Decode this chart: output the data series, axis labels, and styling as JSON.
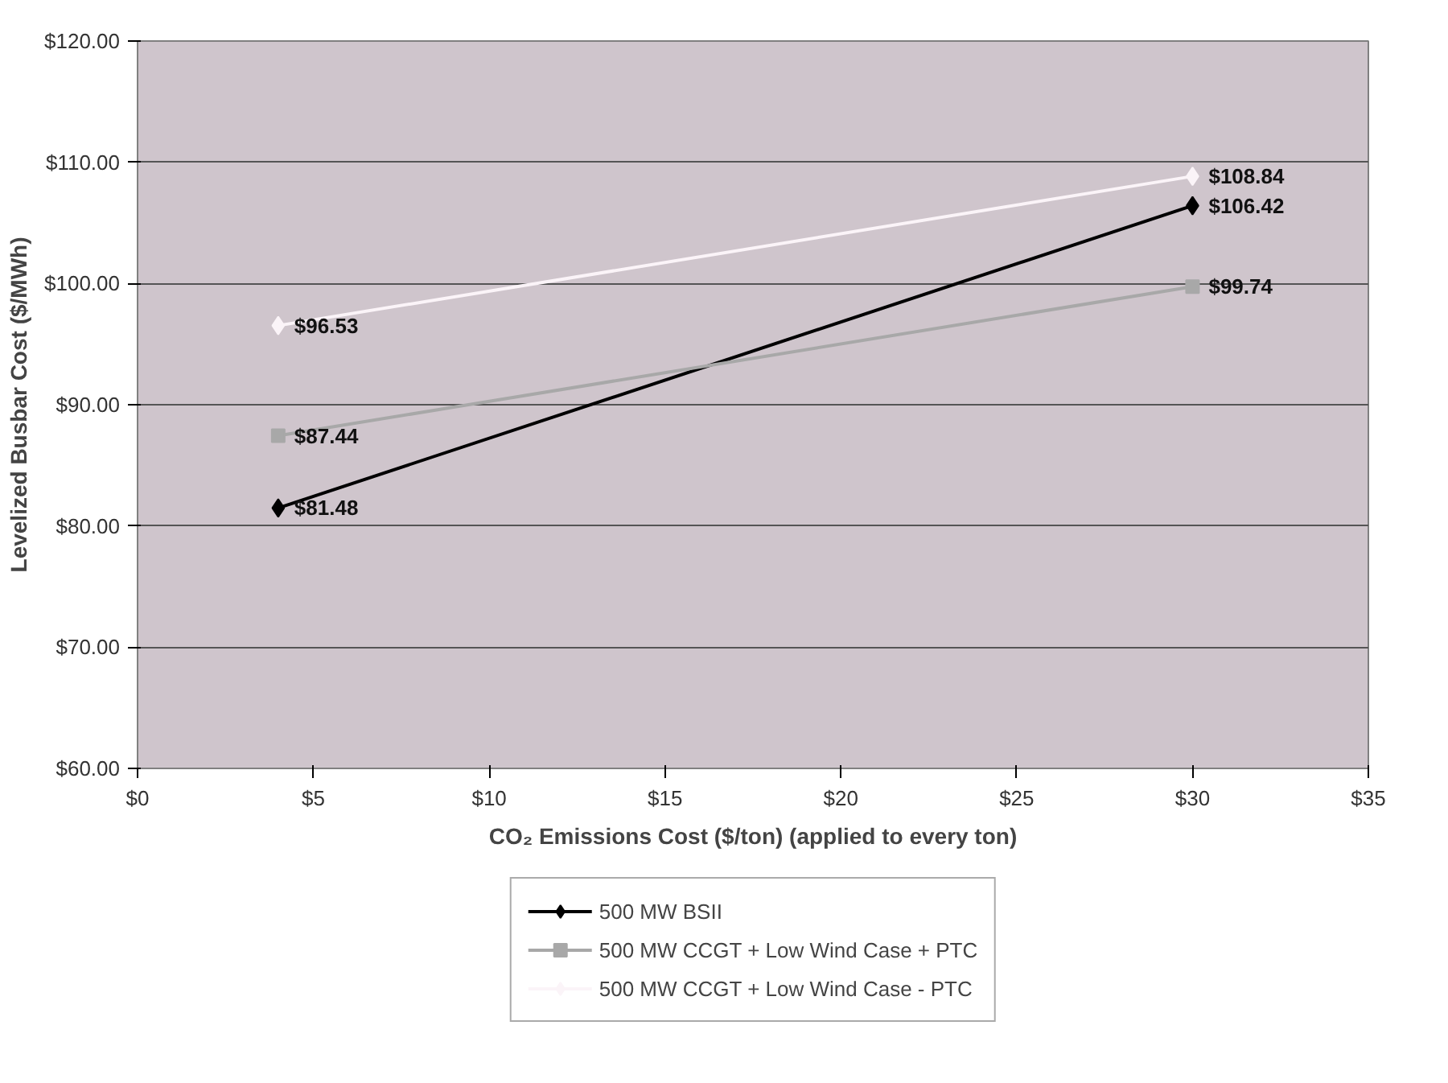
{
  "chart_data": {
    "type": "line",
    "xlabel": "CO₂ Emissions Cost ($/ton) (applied to every ton)",
    "ylabel": "Levelized Busbar Cost ($/MWh)",
    "x": [
      4,
      30
    ],
    "xlim": [
      0,
      35
    ],
    "ylim": [
      60,
      120
    ],
    "xticks": [
      {
        "value": 0,
        "label": "$0"
      },
      {
        "value": 5,
        "label": "$5"
      },
      {
        "value": 10,
        "label": "$10"
      },
      {
        "value": 15,
        "label": "$15"
      },
      {
        "value": 20,
        "label": "$20"
      },
      {
        "value": 25,
        "label": "$25"
      },
      {
        "value": 30,
        "label": "$30"
      },
      {
        "value": 35,
        "label": "$35"
      }
    ],
    "yticks": [
      {
        "value": 60,
        "label": "$60.00"
      },
      {
        "value": 70,
        "label": "$70.00"
      },
      {
        "value": 80,
        "label": "$80.00"
      },
      {
        "value": 90,
        "label": "$90.00"
      },
      {
        "value": 100,
        "label": "$100.00"
      },
      {
        "value": 110,
        "label": "$110.00"
      },
      {
        "value": 120,
        "label": "$120.00"
      }
    ],
    "grid": "y",
    "legend": "bottom",
    "series": [
      {
        "name": "500 MW BSII",
        "color": "#000000",
        "marker": "diamond",
        "values": [
          81.48,
          106.42
        ],
        "value_labels": [
          "$81.48",
          "$106.42"
        ]
      },
      {
        "name": "500 MW CCGT + Low Wind Case + PTC",
        "color": "#a8a8a8",
        "marker": "square",
        "values": [
          87.44,
          99.74
        ],
        "value_labels": [
          "$87.44",
          "$99.74"
        ]
      },
      {
        "name": "500 MW CCGT + Low Wind Case - PTC",
        "color": "#fbf4f8",
        "marker": "diamond",
        "values": [
          96.53,
          108.84
        ],
        "value_labels": [
          "$96.53",
          "$108.84"
        ]
      }
    ]
  }
}
